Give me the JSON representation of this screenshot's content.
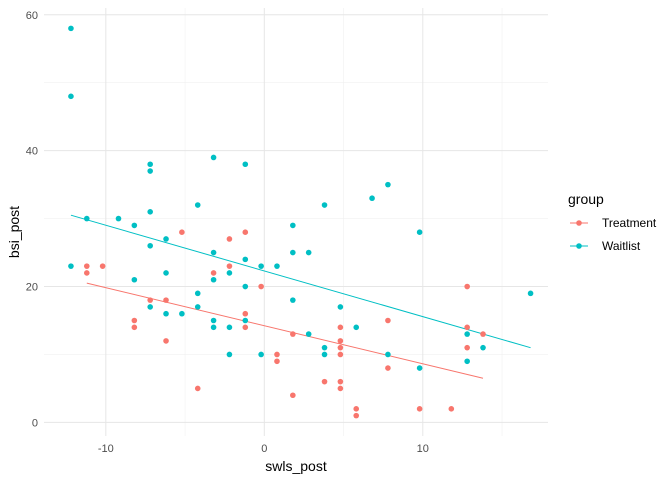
{
  "chart_data": {
    "type": "scatter",
    "xlabel": "swls_post",
    "ylabel": "bsi_post",
    "xlim": [
      -13.9,
      17.9
    ],
    "ylim": [
      -2,
      61
    ],
    "xticks": [
      -10,
      0,
      10
    ],
    "xtick_labels": [
      "-10",
      "0",
      "10"
    ],
    "yticks": [
      0,
      20,
      40,
      60
    ],
    "ytick_labels": [
      "0",
      "20",
      "40",
      "60"
    ],
    "grid": true,
    "legend": {
      "title": "group",
      "position": "right"
    },
    "series": [
      {
        "name": "Treatment",
        "color": "#F8766D",
        "points": [
          [
            -11.2,
            23
          ],
          [
            -11.2,
            22
          ],
          [
            -10.2,
            23
          ],
          [
            -8.2,
            15
          ],
          [
            -8.2,
            14
          ],
          [
            -7.2,
            18
          ],
          [
            -6.2,
            18
          ],
          [
            -6.2,
            12
          ],
          [
            -5.2,
            28
          ],
          [
            -4.2,
            5
          ],
          [
            -3.2,
            22
          ],
          [
            -2.2,
            27
          ],
          [
            -2.2,
            23
          ],
          [
            -1.2,
            28
          ],
          [
            -1.2,
            16
          ],
          [
            -1.2,
            14
          ],
          [
            -0.2,
            20
          ],
          [
            0.8,
            10
          ],
          [
            0.8,
            9
          ],
          [
            1.8,
            13
          ],
          [
            1.8,
            4
          ],
          [
            3.8,
            6
          ],
          [
            4.8,
            14
          ],
          [
            4.8,
            12
          ],
          [
            4.8,
            11
          ],
          [
            4.8,
            10
          ],
          [
            4.8,
            6
          ],
          [
            4.8,
            5
          ],
          [
            5.8,
            2
          ],
          [
            5.8,
            1
          ],
          [
            7.8,
            15
          ],
          [
            7.8,
            8
          ],
          [
            9.8,
            2
          ],
          [
            11.8,
            2
          ],
          [
            12.8,
            20
          ],
          [
            12.8,
            14
          ],
          [
            12.8,
            11
          ],
          [
            13.8,
            13
          ]
        ],
        "fit": [
          [
            -11.2,
            20.5
          ],
          [
            13.8,
            6.5
          ]
        ]
      },
      {
        "name": "Waitlist",
        "color": "#00BFC4",
        "points": [
          [
            -12.2,
            58
          ],
          [
            -12.2,
            48
          ],
          [
            -12.2,
            23
          ],
          [
            -11.2,
            30
          ],
          [
            -9.2,
            30
          ],
          [
            -8.2,
            29
          ],
          [
            -8.2,
            21
          ],
          [
            -7.2,
            38
          ],
          [
            -7.2,
            37
          ],
          [
            -7.2,
            31
          ],
          [
            -7.2,
            26
          ],
          [
            -7.2,
            17
          ],
          [
            -6.2,
            27
          ],
          [
            -6.2,
            22
          ],
          [
            -6.2,
            16
          ],
          [
            -5.2,
            16
          ],
          [
            -4.2,
            32
          ],
          [
            -4.2,
            19
          ],
          [
            -4.2,
            17
          ],
          [
            -3.2,
            39
          ],
          [
            -3.2,
            25
          ],
          [
            -3.2,
            21
          ],
          [
            -3.2,
            15
          ],
          [
            -3.2,
            14
          ],
          [
            -2.2,
            22
          ],
          [
            -2.2,
            14
          ],
          [
            -2.2,
            10
          ],
          [
            -1.2,
            38
          ],
          [
            -1.2,
            24
          ],
          [
            -1.2,
            20
          ],
          [
            -1.2,
            15
          ],
          [
            -0.2,
            23
          ],
          [
            -0.2,
            10
          ],
          [
            0.8,
            23
          ],
          [
            1.8,
            29
          ],
          [
            1.8,
            25
          ],
          [
            1.8,
            18
          ],
          [
            2.8,
            25
          ],
          [
            2.8,
            13
          ],
          [
            3.8,
            32
          ],
          [
            3.8,
            11
          ],
          [
            3.8,
            10
          ],
          [
            4.8,
            17
          ],
          [
            5.8,
            14
          ],
          [
            6.8,
            33
          ],
          [
            7.8,
            35
          ],
          [
            7.8,
            10
          ],
          [
            9.8,
            28
          ],
          [
            9.8,
            8
          ],
          [
            12.8,
            13
          ],
          [
            12.8,
            9
          ],
          [
            13.8,
            11
          ],
          [
            16.8,
            19
          ]
        ],
        "fit": [
          [
            -12.2,
            30.5
          ],
          [
            16.8,
            11
          ]
        ]
      }
    ]
  }
}
